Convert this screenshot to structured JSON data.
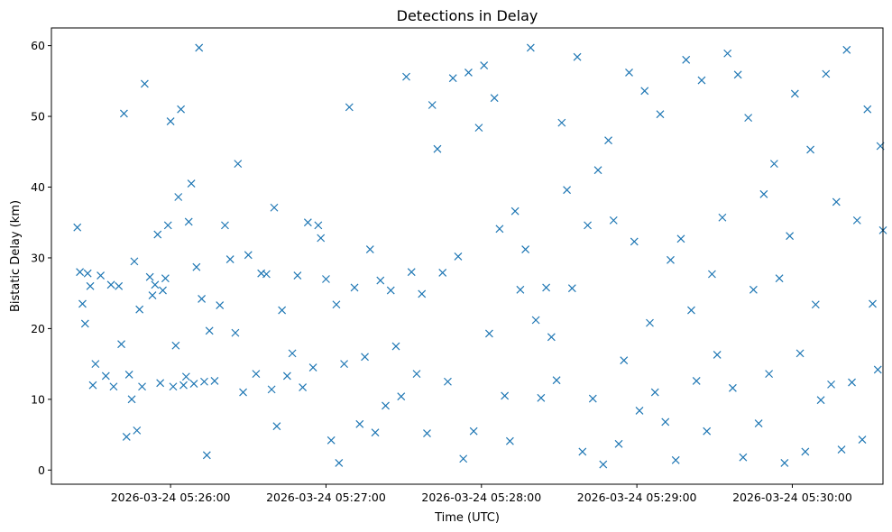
{
  "chart_data": {
    "type": "scatter",
    "title": "Detections in Delay",
    "xlabel": "Time (UTC)",
    "ylabel": "Bistatic Delay (km)",
    "x_ticks": [
      "2026-03-24 05:26:00",
      "2026-03-24 05:27:00",
      "2026-03-24 05:28:00",
      "2026-03-24 05:29:00",
      "2026-03-24 05:30:00"
    ],
    "y_ticks": [
      "0",
      "10",
      "20",
      "30",
      "40",
      "50",
      "60"
    ],
    "xlim": [
      "2026-03-24 05:25:14",
      "2026-03-24 05:30:35"
    ],
    "ylim": [
      -2,
      62.5
    ],
    "grid": false,
    "marker": "x",
    "color": "#1f77b4",
    "series": [
      {
        "points": [
          [
            "2026-03-24 05:25:24",
            34.3
          ],
          [
            "2026-03-24 05:25:25",
            28
          ],
          [
            "2026-03-24 05:25:26",
            23.5
          ],
          [
            "2026-03-24 05:25:27",
            20.7
          ],
          [
            "2026-03-24 05:25:28",
            27.8
          ],
          [
            "2026-03-24 05:25:29",
            26
          ],
          [
            "2026-03-24 05:25:30",
            12
          ],
          [
            "2026-03-24 05:25:31",
            15
          ],
          [
            "2026-03-24 05:25:33",
            27.5
          ],
          [
            "2026-03-24 05:25:35",
            13.3
          ],
          [
            "2026-03-24 05:25:37",
            26.2
          ],
          [
            "2026-03-24 05:25:38",
            11.8
          ],
          [
            "2026-03-24 05:25:40",
            26
          ],
          [
            "2026-03-24 05:25:41",
            17.8
          ],
          [
            "2026-03-24 05:25:42",
            50.4
          ],
          [
            "2026-03-24 05:25:43",
            4.7
          ],
          [
            "2026-03-24 05:25:44",
            13.5
          ],
          [
            "2026-03-24 05:25:45",
            10
          ],
          [
            "2026-03-24 05:25:46",
            29.5
          ],
          [
            "2026-03-24 05:25:47",
            5.6
          ],
          [
            "2026-03-24 05:25:48",
            22.7
          ],
          [
            "2026-03-24 05:25:49",
            11.8
          ],
          [
            "2026-03-24 05:25:50",
            54.6
          ],
          [
            "2026-03-24 05:25:52",
            27.3
          ],
          [
            "2026-03-24 05:25:53",
            24.7
          ],
          [
            "2026-03-24 05:25:54",
            26.2
          ],
          [
            "2026-03-24 05:25:55",
            33.3
          ],
          [
            "2026-03-24 05:25:56",
            12.3
          ],
          [
            "2026-03-24 05:25:57",
            25.4
          ],
          [
            "2026-03-24 05:25:58",
            27.1
          ],
          [
            "2026-03-24 05:25:59",
            34.6
          ],
          [
            "2026-03-24 05:26:00",
            49.3
          ],
          [
            "2026-03-24 05:26:01",
            11.8
          ],
          [
            "2026-03-24 05:26:02",
            17.6
          ],
          [
            "2026-03-24 05:26:03",
            38.6
          ],
          [
            "2026-03-24 05:26:04",
            51
          ],
          [
            "2026-03-24 05:26:05",
            12
          ],
          [
            "2026-03-24 05:26:06",
            13.2
          ],
          [
            "2026-03-24 05:26:07",
            35.1
          ],
          [
            "2026-03-24 05:26:08",
            40.5
          ],
          [
            "2026-03-24 05:26:09",
            12.2
          ],
          [
            "2026-03-24 05:26:10",
            28.7
          ],
          [
            "2026-03-24 05:26:11",
            59.7
          ],
          [
            "2026-03-24 05:26:12",
            24.2
          ],
          [
            "2026-03-24 05:26:13",
            12.5
          ],
          [
            "2026-03-24 05:26:14",
            2.1
          ],
          [
            "2026-03-24 05:26:15",
            19.7
          ],
          [
            "2026-03-24 05:26:17",
            12.6
          ],
          [
            "2026-03-24 05:26:19",
            23.3
          ],
          [
            "2026-03-24 05:26:21",
            34.6
          ],
          [
            "2026-03-24 05:26:23",
            29.8
          ],
          [
            "2026-03-24 05:26:25",
            19.4
          ],
          [
            "2026-03-24 05:26:26",
            43.3
          ],
          [
            "2026-03-24 05:26:28",
            11
          ],
          [
            "2026-03-24 05:26:30",
            30.4
          ],
          [
            "2026-03-24 05:26:33",
            13.6
          ],
          [
            "2026-03-24 05:26:35",
            27.8
          ],
          [
            "2026-03-24 05:26:37",
            27.7
          ],
          [
            "2026-03-24 05:26:39",
            11.4
          ],
          [
            "2026-03-24 05:26:40",
            37.1
          ],
          [
            "2026-03-24 05:26:41",
            6.2
          ],
          [
            "2026-03-24 05:26:43",
            22.6
          ],
          [
            "2026-03-24 05:26:45",
            13.3
          ],
          [
            "2026-03-24 05:26:47",
            16.5
          ],
          [
            "2026-03-24 05:26:49",
            27.5
          ],
          [
            "2026-03-24 05:26:51",
            11.7
          ],
          [
            "2026-03-24 05:26:53",
            35
          ],
          [
            "2026-03-24 05:26:55",
            14.5
          ],
          [
            "2026-03-24 05:26:57",
            34.6
          ],
          [
            "2026-03-24 05:26:58",
            32.8
          ],
          [
            "2026-03-24 05:27:00",
            27
          ],
          [
            "2026-03-24 05:27:02",
            4.2
          ],
          [
            "2026-03-24 05:27:04",
            23.4
          ],
          [
            "2026-03-24 05:27:05",
            1
          ],
          [
            "2026-03-24 05:27:07",
            15
          ],
          [
            "2026-03-24 05:27:09",
            51.3
          ],
          [
            "2026-03-24 05:27:11",
            25.8
          ],
          [
            "2026-03-24 05:27:13",
            6.5
          ],
          [
            "2026-03-24 05:27:15",
            16
          ],
          [
            "2026-03-24 05:27:17",
            31.2
          ],
          [
            "2026-03-24 05:27:19",
            5.3
          ],
          [
            "2026-03-24 05:27:21",
            26.8
          ],
          [
            "2026-03-24 05:27:23",
            9.1
          ],
          [
            "2026-03-24 05:27:25",
            25.4
          ],
          [
            "2026-03-24 05:27:27",
            17.5
          ],
          [
            "2026-03-24 05:27:29",
            10.4
          ],
          [
            "2026-03-24 05:27:31",
            55.6
          ],
          [
            "2026-03-24 05:27:33",
            28
          ],
          [
            "2026-03-24 05:27:35",
            13.6
          ],
          [
            "2026-03-24 05:27:37",
            24.9
          ],
          [
            "2026-03-24 05:27:39",
            5.2
          ],
          [
            "2026-03-24 05:27:41",
            51.6
          ],
          [
            "2026-03-24 05:27:43",
            45.4
          ],
          [
            "2026-03-24 05:27:45",
            27.9
          ],
          [
            "2026-03-24 05:27:47",
            12.5
          ],
          [
            "2026-03-24 05:27:49",
            55.4
          ],
          [
            "2026-03-24 05:27:51",
            30.2
          ],
          [
            "2026-03-24 05:27:53",
            1.6
          ],
          [
            "2026-03-24 05:27:55",
            56.2
          ],
          [
            "2026-03-24 05:27:57",
            5.5
          ],
          [
            "2026-03-24 05:27:59",
            48.4
          ],
          [
            "2026-03-24 05:28:01",
            57.2
          ],
          [
            "2026-03-24 05:28:03",
            19.3
          ],
          [
            "2026-03-24 05:28:05",
            52.6
          ],
          [
            "2026-03-24 05:28:07",
            34.1
          ],
          [
            "2026-03-24 05:28:09",
            10.5
          ],
          [
            "2026-03-24 05:28:11",
            4.1
          ],
          [
            "2026-03-24 05:28:13",
            36.6
          ],
          [
            "2026-03-24 05:28:15",
            25.5
          ],
          [
            "2026-03-24 05:28:17",
            31.2
          ],
          [
            "2026-03-24 05:28:19",
            59.7
          ],
          [
            "2026-03-24 05:28:21",
            21.2
          ],
          [
            "2026-03-24 05:28:23",
            10.2
          ],
          [
            "2026-03-24 05:28:25",
            25.8
          ],
          [
            "2026-03-24 05:28:27",
            18.8
          ],
          [
            "2026-03-24 05:28:29",
            12.7
          ],
          [
            "2026-03-24 05:28:31",
            49.1
          ],
          [
            "2026-03-24 05:28:33",
            39.6
          ],
          [
            "2026-03-24 05:28:35",
            25.7
          ],
          [
            "2026-03-24 05:28:37",
            58.4
          ],
          [
            "2026-03-24 05:28:39",
            2.6
          ],
          [
            "2026-03-24 05:28:41",
            34.6
          ],
          [
            "2026-03-24 05:28:43",
            10.1
          ],
          [
            "2026-03-24 05:28:45",
            42.4
          ],
          [
            "2026-03-24 05:28:47",
            0.8
          ],
          [
            "2026-03-24 05:28:49",
            46.6
          ],
          [
            "2026-03-24 05:28:51",
            35.3
          ],
          [
            "2026-03-24 05:28:53",
            3.7
          ],
          [
            "2026-03-24 05:28:55",
            15.5
          ],
          [
            "2026-03-24 05:28:57",
            56.2
          ],
          [
            "2026-03-24 05:28:59",
            32.3
          ],
          [
            "2026-03-24 05:29:01",
            8.4
          ],
          [
            "2026-03-24 05:29:03",
            53.6
          ],
          [
            "2026-03-24 05:29:05",
            20.8
          ],
          [
            "2026-03-24 05:29:07",
            11
          ],
          [
            "2026-03-24 05:29:09",
            50.3
          ],
          [
            "2026-03-24 05:29:11",
            6.8
          ],
          [
            "2026-03-24 05:29:13",
            29.7
          ],
          [
            "2026-03-24 05:29:15",
            1.4
          ],
          [
            "2026-03-24 05:29:17",
            32.7
          ],
          [
            "2026-03-24 05:29:19",
            58
          ],
          [
            "2026-03-24 05:29:21",
            22.6
          ],
          [
            "2026-03-24 05:29:23",
            12.6
          ],
          [
            "2026-03-24 05:29:25",
            55.1
          ],
          [
            "2026-03-24 05:29:27",
            5.5
          ],
          [
            "2026-03-24 05:29:29",
            27.7
          ],
          [
            "2026-03-24 05:29:31",
            16.3
          ],
          [
            "2026-03-24 05:29:33",
            35.7
          ],
          [
            "2026-03-24 05:29:35",
            58.9
          ],
          [
            "2026-03-24 05:29:37",
            11.6
          ],
          [
            "2026-03-24 05:29:39",
            55.9
          ],
          [
            "2026-03-24 05:29:41",
            1.8
          ],
          [
            "2026-03-24 05:29:43",
            49.8
          ],
          [
            "2026-03-24 05:29:45",
            25.5
          ],
          [
            "2026-03-24 05:29:47",
            6.6
          ],
          [
            "2026-03-24 05:29:49",
            39
          ],
          [
            "2026-03-24 05:29:51",
            13.6
          ],
          [
            "2026-03-24 05:29:53",
            43.3
          ],
          [
            "2026-03-24 05:29:55",
            27.1
          ],
          [
            "2026-03-24 05:29:57",
            1
          ],
          [
            "2026-03-24 05:29:59",
            33.1
          ],
          [
            "2026-03-24 05:30:01",
            53.2
          ],
          [
            "2026-03-24 05:30:03",
            16.5
          ],
          [
            "2026-03-24 05:30:05",
            2.6
          ],
          [
            "2026-03-24 05:30:07",
            45.3
          ],
          [
            "2026-03-24 05:30:09",
            23.4
          ],
          [
            "2026-03-24 05:30:11",
            9.9
          ],
          [
            "2026-03-24 05:30:13",
            56
          ],
          [
            "2026-03-24 05:30:15",
            12.1
          ],
          [
            "2026-03-24 05:30:17",
            37.9
          ],
          [
            "2026-03-24 05:30:19",
            2.9
          ],
          [
            "2026-03-24 05:30:21",
            59.4
          ],
          [
            "2026-03-24 05:30:23",
            12.4
          ],
          [
            "2026-03-24 05:30:25",
            35.3
          ],
          [
            "2026-03-24 05:30:27",
            4.3
          ],
          [
            "2026-03-24 05:30:29",
            51
          ],
          [
            "2026-03-24 05:30:31",
            23.5
          ],
          [
            "2026-03-24 05:30:33",
            14.2
          ],
          [
            "2026-03-24 05:30:35",
            33.9
          ],
          [
            "2026-03-24 05:30:34",
            45.8
          ]
        ]
      }
    ]
  }
}
